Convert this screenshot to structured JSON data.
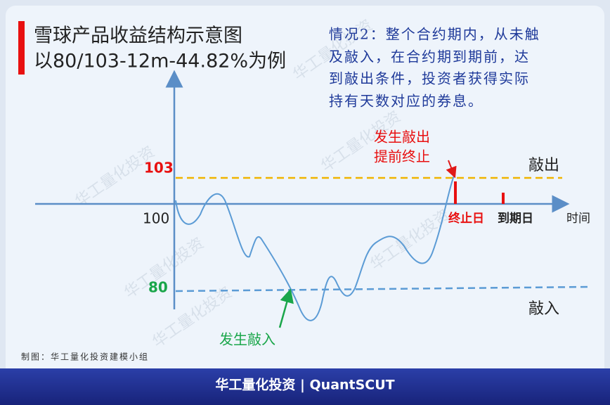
{
  "title": {
    "line1": "雪球产品收益结构示意图",
    "line2": "以80/103-12m-44.82%为例"
  },
  "scenario": {
    "lines": [
      "情况2：整个合约期内，从未触",
      "及敲入，在合约期到期前，达",
      "到敲出条件，投资者获得实际",
      "持有天数对应的券息。"
    ]
  },
  "levels": {
    "knock_out": "103",
    "start": "100",
    "knock_in": "80"
  },
  "level_names": {
    "knock_out": "敲出",
    "knock_in": "敲入"
  },
  "axis": {
    "x_label": "时间"
  },
  "annotations": {
    "early_exit": [
      "发生敲出",
      "提前终止"
    ],
    "knock_in_event": "发生敲入",
    "end_day": "终止日",
    "maturity": "到期日"
  },
  "watermark": "华工量化投资",
  "credit": "制图：华工量化投资建模小组",
  "footer": "华工量化投资 | QuantSCUT"
}
